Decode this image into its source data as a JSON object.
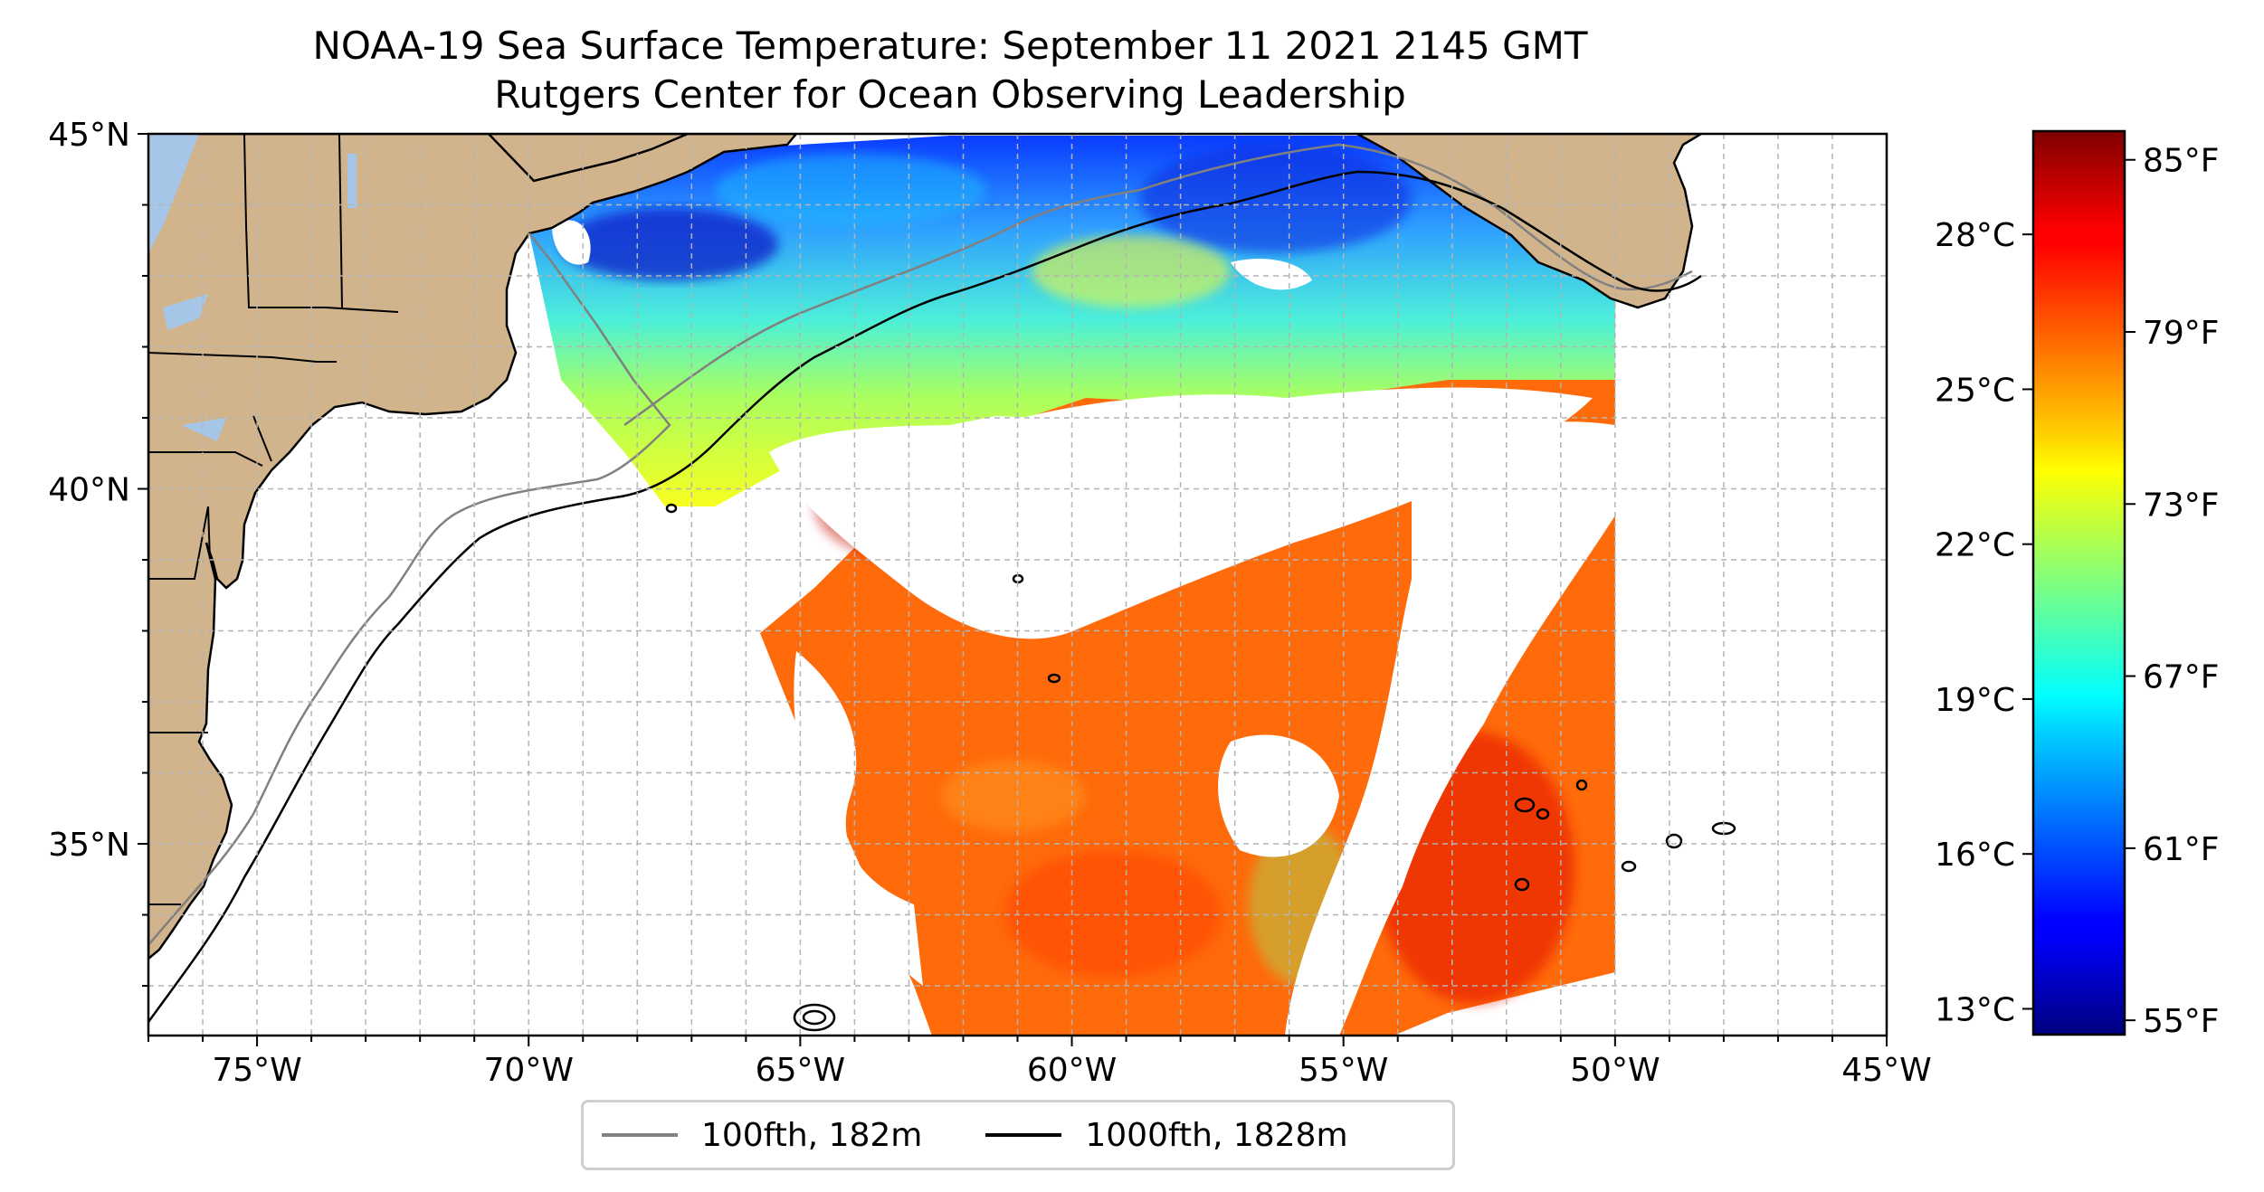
{
  "title": {
    "line1": "NOAA-19 Sea Surface Temperature: September 11 2021 2145 GMT",
    "line2": "Rutgers Center for Ocean Observing Leadership"
  },
  "map": {
    "lon_range": [
      -77,
      -45
    ],
    "lat_range": [
      32.3,
      45
    ],
    "lon_ticks": [
      {
        "value": -75,
        "label": "75°W"
      },
      {
        "value": -70,
        "label": "70°W"
      },
      {
        "value": -65,
        "label": "65°W"
      },
      {
        "value": -60,
        "label": "60°W"
      },
      {
        "value": -55,
        "label": "55°W"
      },
      {
        "value": -50,
        "label": "50°W"
      },
      {
        "value": -45,
        "label": "45°W"
      }
    ],
    "lat_ticks": [
      {
        "value": 45,
        "label": "45°N"
      },
      {
        "value": 40,
        "label": "40°N"
      },
      {
        "value": 35,
        "label": "35°N"
      }
    ],
    "grid": true,
    "land_color": "#d2b48c",
    "lake_color": "#a6c6e8"
  },
  "legend": {
    "placement": "bottom-center",
    "items": [
      {
        "label": "100fth, 182m",
        "color": "#808080"
      },
      {
        "label": "1000fth, 1828m",
        "color": "#000000"
      }
    ]
  },
  "colorbar": {
    "colormap": "jet",
    "f_range": [
      54.5,
      86
    ],
    "left_ticks": [
      {
        "value": 13,
        "unit_f": 55.4,
        "label": "13°C"
      },
      {
        "value": 16,
        "unit_f": 60.8,
        "label": "16°C"
      },
      {
        "value": 19,
        "unit_f": 66.2,
        "label": "19°C"
      },
      {
        "value": 22,
        "unit_f": 71.6,
        "label": "22°C"
      },
      {
        "value": 25,
        "unit_f": 77.0,
        "label": "25°C"
      },
      {
        "value": 28,
        "unit_f": 82.4,
        "label": "28°C"
      }
    ],
    "right_ticks": [
      {
        "value": 55,
        "label": "55°F"
      },
      {
        "value": 61,
        "label": "61°F"
      },
      {
        "value": 67,
        "label": "67°F"
      },
      {
        "value": 73,
        "label": "73°F"
      },
      {
        "value": 79,
        "label": "79°F"
      },
      {
        "value": 85,
        "label": "85°F"
      }
    ]
  }
}
